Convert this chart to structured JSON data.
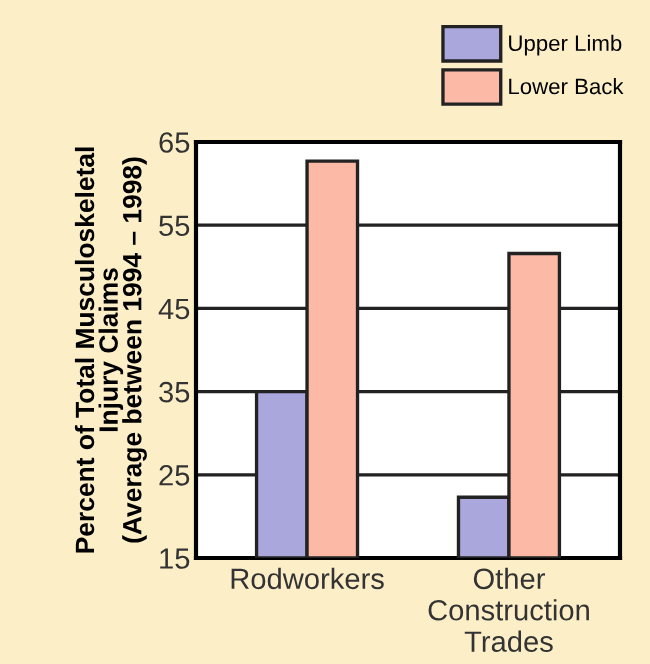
{
  "chart_data": {
    "type": "bar",
    "ylabel": "Percent of Total Musculoskeletal\nInjury Claims\n(Average between 1994 – 1998)",
    "categories": [
      "Rodworkers",
      "Other\nConstruction\nTrades"
    ],
    "series": [
      {
        "name": "Upper Limb",
        "color": "#aaa7dc",
        "values": [
          35,
          22.3
        ]
      },
      {
        "name": "Lower Back",
        "color": "#fbb9a6",
        "values": [
          62.7,
          51.6
        ]
      }
    ],
    "ylim": [
      15,
      65
    ],
    "yticks": [
      15,
      25,
      35,
      45,
      55,
      65
    ],
    "grid": "y",
    "legend": "top right"
  }
}
